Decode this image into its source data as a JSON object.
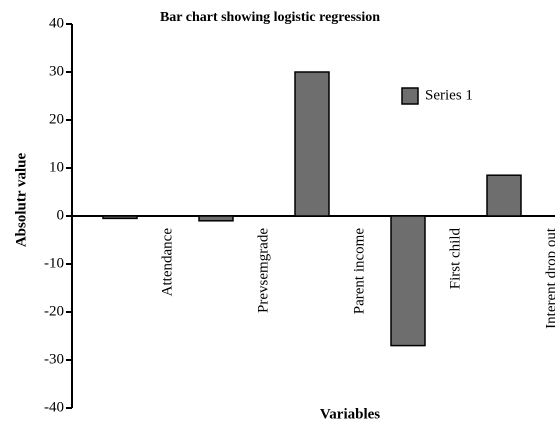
{
  "chart_data": {
    "type": "bar",
    "title": "Bar chart showing logistic regression",
    "x_label": "Variables",
    "y_label": "Absolutr value",
    "categories": [
      "Attendance",
      "Prevsemgrade",
      "Parent income",
      "First child",
      "Interent drop out"
    ],
    "series": [
      {
        "name": "Series 1",
        "color": "#6e6e6e",
        "values": [
          -0.5,
          -1,
          30,
          -27,
          8.5
        ]
      }
    ],
    "ylim": [
      -40,
      40
    ],
    "yticks": [
      -40,
      -30,
      -20,
      -10,
      0,
      10,
      20,
      30,
      40
    ]
  }
}
